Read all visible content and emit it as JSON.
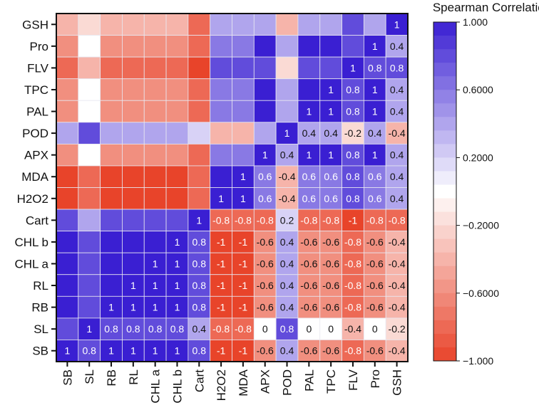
{
  "chart_data": {
    "type": "heatmap",
    "title": "Spearman Correlation",
    "variables": [
      "SB",
      "SL",
      "RB",
      "RL",
      "CHL a",
      "CHL b",
      "Cart",
      "H2O2",
      "MDA",
      "APX",
      "POD",
      "PAL",
      "TPC",
      "FLV",
      "Pro",
      "GSH"
    ],
    "matrix": [
      [
        1,
        0.8,
        1,
        1,
        1,
        1,
        0.8,
        -1,
        -1,
        -0.6,
        0.4,
        -0.6,
        -0.6,
        -0.8,
        -0.6,
        -0.4
      ],
      [
        0.8,
        1,
        0.8,
        0.8,
        0.8,
        0.8,
        0.4,
        -0.8,
        -0.8,
        0,
        0.8,
        0,
        0,
        -0.4,
        0,
        -0.2
      ],
      [
        1,
        0.8,
        1,
        1,
        1,
        1,
        0.8,
        -1,
        -1,
        -0.6,
        0.4,
        -0.6,
        -0.6,
        -0.8,
        -0.6,
        -0.4
      ],
      [
        1,
        0.8,
        1,
        1,
        1,
        1,
        0.8,
        -1,
        -1,
        -0.6,
        0.4,
        -0.6,
        -0.6,
        -0.8,
        -0.6,
        -0.4
      ],
      [
        1,
        0.8,
        1,
        1,
        1,
        1,
        0.8,
        -1,
        -1,
        -0.6,
        0.4,
        -0.6,
        -0.6,
        -0.8,
        -0.6,
        -0.4
      ],
      [
        1,
        0.8,
        1,
        1,
        1,
        1,
        0.8,
        -1,
        -1,
        -0.6,
        0.4,
        -0.6,
        -0.6,
        -0.8,
        -0.6,
        -0.4
      ],
      [
        0.8,
        0.4,
        0.8,
        0.8,
        0.8,
        0.8,
        1,
        -0.8,
        -0.8,
        -0.8,
        0.2,
        -0.8,
        -0.8,
        -1,
        -0.8,
        -0.8
      ],
      [
        -1,
        -0.8,
        -1,
        -1,
        -1,
        -1,
        -0.8,
        1,
        1,
        0.6,
        -0.4,
        0.6,
        0.6,
        0.8,
        0.6,
        0.4
      ],
      [
        -1,
        -0.8,
        -1,
        -1,
        -1,
        -1,
        -0.8,
        1,
        1,
        0.6,
        -0.4,
        0.6,
        0.6,
        0.8,
        0.6,
        0.4
      ],
      [
        -0.6,
        0,
        -0.6,
        -0.6,
        -0.6,
        -0.6,
        -0.8,
        0.6,
        0.6,
        1,
        0.4,
        1,
        1,
        0.8,
        1,
        0.4
      ],
      [
        0.4,
        0.8,
        0.4,
        0.4,
        0.4,
        0.4,
        0.2,
        -0.4,
        -0.4,
        0.4,
        1,
        0.4,
        0.4,
        -0.2,
        0.4,
        -0.4
      ],
      [
        -0.6,
        0,
        -0.6,
        -0.6,
        -0.6,
        -0.6,
        -0.8,
        0.6,
        0.6,
        1,
        0.4,
        1,
        1,
        0.8,
        1,
        0.4
      ],
      [
        -0.6,
        0,
        -0.6,
        -0.6,
        -0.6,
        -0.6,
        -0.8,
        0.6,
        0.6,
        1,
        0.4,
        1,
        1,
        0.8,
        1,
        0.4
      ],
      [
        -0.8,
        -0.4,
        -0.8,
        -0.8,
        -0.8,
        -0.8,
        -1,
        0.8,
        0.8,
        0.8,
        -0.2,
        0.8,
        0.8,
        1,
        0.8,
        0.8
      ],
      [
        -0.6,
        0,
        -0.6,
        -0.6,
        -0.6,
        -0.6,
        -0.8,
        0.6,
        0.6,
        1,
        0.4,
        1,
        1,
        0.8,
        1,
        0.4
      ],
      [
        -0.4,
        -0.2,
        -0.4,
        -0.4,
        -0.4,
        -0.4,
        -0.8,
        0.4,
        0.4,
        0.4,
        -0.4,
        0.4,
        0.4,
        0.8,
        0.4,
        1
      ]
    ],
    "labels_shown": "upper-triangle",
    "colorbar": {
      "range": [
        -1,
        1
      ],
      "ticks": [
        1,
        0.6,
        0.2,
        -0.2,
        -0.6,
        -1
      ],
      "tick_labels": [
        "1.000",
        "0.6000",
        "0.2000",
        "−0.2000",
        "−0.6000",
        "−1.000"
      ],
      "colors": {
        "low": "#e8442a",
        "mid": "#ffffff",
        "high": "#3a1fd2"
      }
    }
  }
}
